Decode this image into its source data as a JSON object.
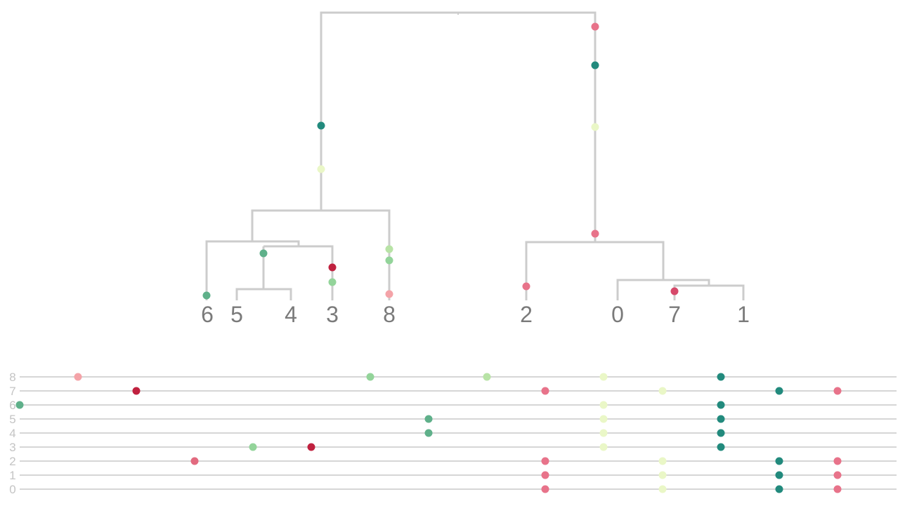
{
  "palette": {
    "branch": "#cccccc",
    "track": "#c8c8c8",
    "leaf_label": "#7a7a7a",
    "row_label": "#c4c4c4",
    "mutation_colors": [
      "#f4a3a8",
      "#c0213f",
      "#e26a7f",
      "#e8738a",
      "#d6496a",
      "#eaf7c7",
      "#b8e3a6",
      "#93d49a",
      "#5fb08a",
      "#228a7d"
    ]
  },
  "tree": {
    "leaves": [
      {
        "id": "6",
        "label": "6"
      },
      {
        "id": "5",
        "label": "5"
      },
      {
        "id": "4",
        "label": "4"
      },
      {
        "id": "3",
        "label": "3"
      },
      {
        "id": "8",
        "label": "8"
      },
      {
        "id": "2",
        "label": "2"
      },
      {
        "id": "0",
        "label": "0"
      },
      {
        "id": "7",
        "label": "7"
      },
      {
        "id": "1",
        "label": "1"
      }
    ]
  },
  "tracks": {
    "rows": [
      {
        "label": "8"
      },
      {
        "label": "7"
      },
      {
        "label": "6"
      },
      {
        "label": "5"
      },
      {
        "label": "4"
      },
      {
        "label": "3"
      },
      {
        "label": "2"
      },
      {
        "label": "1"
      },
      {
        "label": "0"
      }
    ]
  }
}
